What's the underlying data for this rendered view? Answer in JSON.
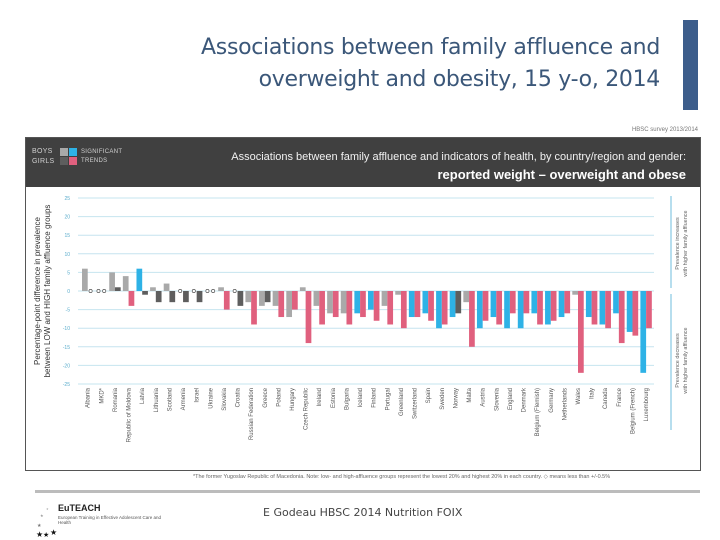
{
  "slide": {
    "title_line1": "Associations between family affluence and",
    "title_line2": "overweight and obesity, 15 y-o, 2014",
    "survey_note": "HBSC survey 2013/2014",
    "footnote": "*The former Yugoslav Republic of Macedonia. Note: low- and high-affluence groups represent the lowest 20% and highest 20% in each country. ◇ means less than +/-0.5%",
    "footer_credit": "E Godeau HBSC 2014 Nutrition FOIX",
    "logo": {
      "name": "EuTEACH",
      "subtitle": "European Training in Effective Adolescent Care and Health"
    }
  },
  "chart_header": {
    "line1": "Associations between family affluence and indicators of health, by country/region and gender:",
    "line2": "reported weight – overweight and obese",
    "legend": {
      "boys": "BOYS",
      "girls": "GIRLS",
      "significant": "SIGNIFICANT",
      "trends": "TRENDS"
    }
  },
  "colors": {
    "boys_ns": "#a9a9a9",
    "boys_sig": "#2eb2e6",
    "girls_ns": "#5e5e5e",
    "girls_sig": "#e0607e",
    "gridline": "#c6e4ef",
    "header_bg": "#404040",
    "title": "#3b5779",
    "accent": "#3c5d8b"
  },
  "chart_data": {
    "type": "bar",
    "title": "Associations between family affluence and indicators of health, by country/region and gender: reported weight – overweight and obese",
    "xlabel": "",
    "ylabel": "Percentage-point difference in prevalence between LOW and HIGH family affluence groups",
    "ylim": [
      -25,
      25
    ],
    "yticks": [
      25,
      20,
      15,
      10,
      5,
      0,
      -5,
      -10,
      -15,
      -20,
      -25
    ],
    "grid": true,
    "right_annotation_top": [
      "Prevalence increases",
      "with higher family affluence"
    ],
    "right_annotation_bottom": [
      "Prevalence decreases",
      "with higher family affluence"
    ],
    "marker_note": "◇ = less than +/-0.5%",
    "categories": [
      "Albania",
      "MKD*",
      "Romania",
      "Republic of Moldova",
      "Latvia",
      "Lithuania",
      "Scotland",
      "Armenia",
      "Israel",
      "Ukraine",
      "Slovakia",
      "Croatia",
      "Russian Federation",
      "Greece",
      "Poland",
      "Hungary",
      "Czech Republic",
      "Ireland",
      "Estonia",
      "Bulgaria",
      "Iceland",
      "Finland",
      "Portugal",
      "Greenland",
      "Switzerland",
      "Spain",
      "Sweden",
      "Norway",
      "Malta",
      "Austria",
      "Slovenia",
      "England",
      "Denmark",
      "Belgium (Flemish)",
      "Germany",
      "Netherlands",
      "Wales",
      "Italy",
      "Canada",
      "France",
      "Belgium (French)",
      "Luxembourg"
    ],
    "series": [
      {
        "name": "Boys",
        "values": [
          6,
          0,
          5,
          4,
          6,
          1,
          2,
          0,
          0,
          0,
          1,
          0,
          -3,
          -4,
          -4,
          -7,
          1,
          -4,
          -6,
          -6,
          -6,
          -5,
          -4,
          -1,
          -7,
          -6,
          -10,
          -7,
          -3,
          -10,
          -7,
          -10,
          -10,
          -6,
          -9,
          -7,
          -1,
          -7,
          -9,
          -6,
          -11,
          -22
        ],
        "significant": [
          false,
          false,
          false,
          false,
          true,
          false,
          false,
          false,
          false,
          false,
          false,
          false,
          false,
          false,
          false,
          false,
          false,
          false,
          false,
          false,
          true,
          true,
          false,
          false,
          true,
          true,
          true,
          true,
          false,
          true,
          true,
          true,
          true,
          true,
          true,
          true,
          false,
          true,
          true,
          true,
          true,
          true
        ]
      },
      {
        "name": "Girls",
        "values": [
          0,
          0,
          1,
          -4,
          -1,
          -3,
          -3,
          -3,
          -3,
          0,
          -5,
          -4,
          -9,
          -3,
          -7,
          -5,
          -14,
          -9,
          -7,
          -9,
          -7,
          -8,
          -9,
          -10,
          -7,
          -8,
          -9,
          -6,
          -15,
          -8,
          -9,
          -6,
          -6,
          -9,
          -8,
          -6,
          -22,
          -9,
          -10,
          -14,
          -12,
          -10
        ],
        "significant": [
          false,
          false,
          false,
          true,
          false,
          false,
          false,
          false,
          false,
          false,
          true,
          false,
          true,
          false,
          true,
          true,
          true,
          true,
          true,
          true,
          true,
          true,
          true,
          true,
          true,
          true,
          true,
          false,
          true,
          true,
          true,
          true,
          true,
          true,
          true,
          true,
          true,
          true,
          true,
          true,
          true,
          true
        ]
      }
    ]
  }
}
